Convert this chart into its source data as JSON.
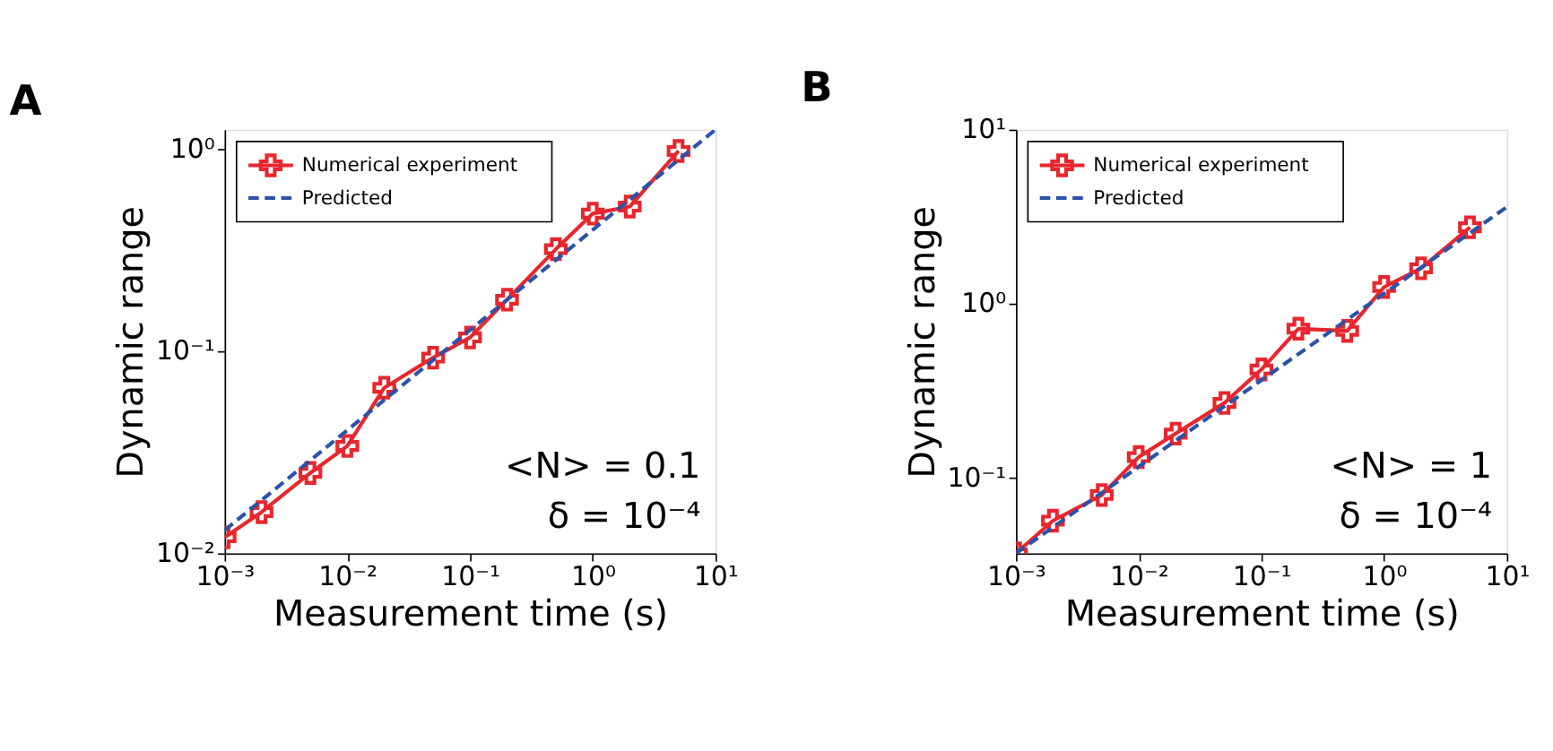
{
  "chart_data": [
    {
      "type": "line",
      "title": "A",
      "xlabel": "Measurement time (s)",
      "ylabel": "Dynamic range",
      "log": "xy",
      "legend": "top left",
      "grid": false,
      "xlim": [
        0.001,
        10
      ],
      "xticks": [
        {
          "value": 0.001,
          "label": "10⁻³"
        },
        {
          "value": 0.01,
          "label": "10⁻²"
        },
        {
          "value": 0.1,
          "label": "10⁻¹"
        },
        {
          "value": 1,
          "label": "10⁰"
        },
        {
          "value": 10,
          "label": "10¹"
        }
      ],
      "ylim": [
        0.01,
        1.25
      ],
      "yticks": [
        {
          "value": 0.01,
          "label": "10⁻²"
        },
        {
          "value": 0.1,
          "label": "10⁻¹"
        },
        {
          "value": 1,
          "label": "10⁰"
        }
      ],
      "annotations": [
        "<N> = 0.1",
        "δ = 10⁻⁴"
      ],
      "series": [
        {
          "name": "Numerical experiment",
          "color": "#e8262d",
          "marker": "cross",
          "line_style": "solid",
          "x": [
            0.001,
            0.002,
            0.005,
            0.01,
            0.02,
            0.05,
            0.1,
            0.2,
            0.5,
            1,
            2,
            5
          ],
          "values": [
            0.012,
            0.016,
            0.025,
            0.034,
            0.066,
            0.093,
            0.117,
            0.18,
            0.32,
            0.48,
            0.52,
            0.98
          ]
        },
        {
          "name": "Predicted",
          "color": "#2a52a8",
          "marker": "none",
          "line_style": "dashed",
          "x": [
            0.001,
            10
          ],
          "values": [
            0.013,
            1.25
          ]
        }
      ]
    },
    {
      "type": "line",
      "title": "B",
      "xlabel": "Measurement time (s)",
      "ylabel": "Dynamic range",
      "log": "xy",
      "legend": "top left",
      "grid": false,
      "xlim": [
        0.001,
        10
      ],
      "xticks": [
        {
          "value": 0.001,
          "label": "10⁻³"
        },
        {
          "value": 0.01,
          "label": "10⁻²"
        },
        {
          "value": 0.1,
          "label": "10⁻¹"
        },
        {
          "value": 1,
          "label": "10⁰"
        },
        {
          "value": 10,
          "label": "10¹"
        }
      ],
      "ylim": [
        0.037,
        10
      ],
      "yticks": [
        {
          "value": 0.1,
          "label": "10⁻¹"
        },
        {
          "value": 1,
          "label": "10⁰"
        },
        {
          "value": 10,
          "label": "10¹"
        }
      ],
      "annotations": [
        "<N> = 1",
        "δ = 10⁻⁴"
      ],
      "series": [
        {
          "name": "Numerical experiment",
          "color": "#e8262d",
          "marker": "cross",
          "line_style": "solid",
          "x": [
            0.001,
            0.002,
            0.005,
            0.01,
            0.02,
            0.05,
            0.1,
            0.2,
            0.5,
            1,
            2,
            5
          ],
          "values": [
            0.037,
            0.057,
            0.08,
            0.132,
            0.18,
            0.27,
            0.42,
            0.72,
            0.7,
            1.25,
            1.6,
            2.75
          ]
        },
        {
          "name": "Predicted",
          "color": "#2a52a8",
          "marker": "none",
          "line_style": "dashed",
          "x": [
            0.001,
            10
          ],
          "values": [
            0.037,
            3.6
          ]
        }
      ]
    }
  ]
}
